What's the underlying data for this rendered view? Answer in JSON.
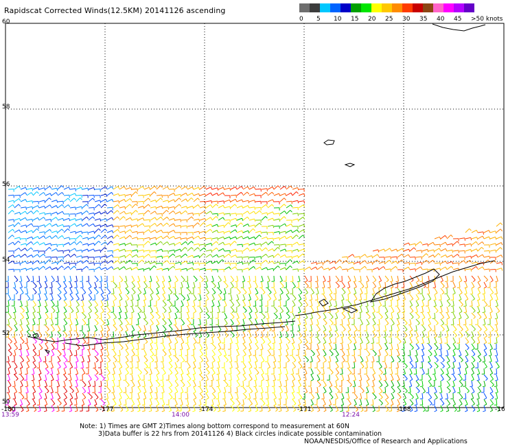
{
  "title": "Rapidscat Corrected Winds(12.5KM) 20141126 ascending",
  "legend": {
    "labels": [
      "0",
      "5",
      "10",
      "15",
      "20",
      "25",
      "30",
      "35",
      "40",
      "45",
      ">50 knots"
    ],
    "colors": [
      "#6e6e6e",
      "#3c3c3c",
      "#00c8ff",
      "#0064ff",
      "#0000c8",
      "#00a000",
      "#00e600",
      "#ffff00",
      "#ffc800",
      "#ff8c00",
      "#ff3c00",
      "#c80000",
      "#8c4614",
      "#ff64c8",
      "#ff00ff",
      "#b400ff",
      "#6400c8"
    ]
  },
  "latitude_labels": [
    "60",
    "58",
    "56",
    "54",
    "52",
    "50"
  ],
  "longitude_labels": [
    "-180",
    "-177",
    "-174",
    "-171",
    "-168",
    "-16"
  ],
  "time_labels": [
    "13:59",
    "14:00",
    "12:24"
  ],
  "notes": [
    "Note: 1) Times are GMT 2)Times along bottom correspond to measurement at 60N",
    "3)Data buffer is 22 hrs from 20141126 4) Black circles indicate possible contamination",
    "NOAA/NESDIS/Office of Research and Applications"
  ]
}
